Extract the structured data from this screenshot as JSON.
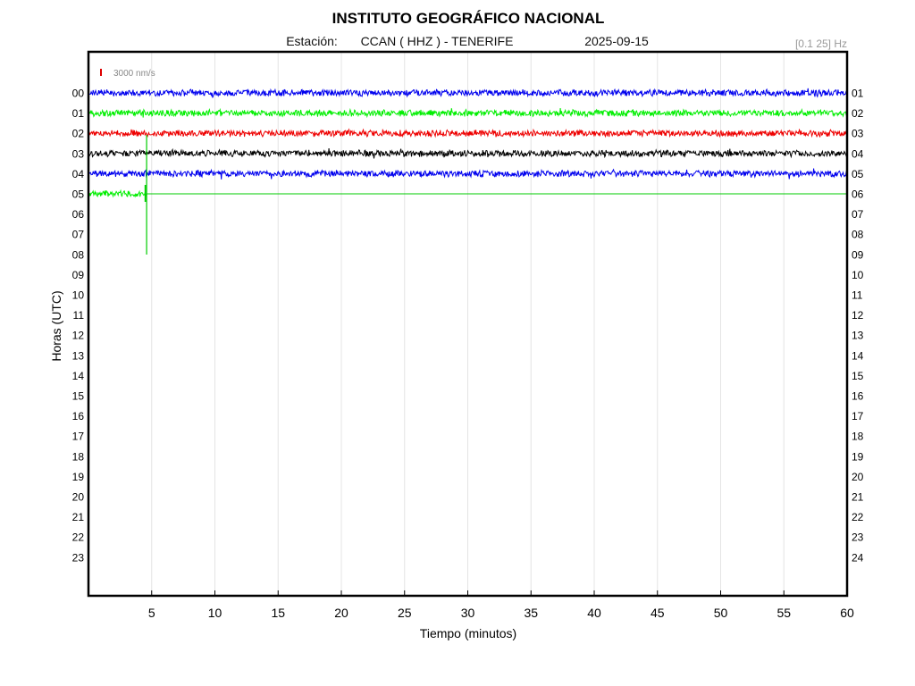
{
  "header": {
    "title": "INSTITUTO GEOGRÁFICO NACIONAL",
    "station_label": "Estación:",
    "station": "CCAN ( HHZ ) - TENERIFE",
    "date": "2025-09-15",
    "filter": "[0.1 25] Hz"
  },
  "scale": {
    "label": "3000 nm/s",
    "color": "#dd0000"
  },
  "chart_data": {
    "type": "line",
    "title": "INSTITUTO GEOGRÁFICO NACIONAL",
    "xlabel": "Tiempo (minutos)",
    "ylabel": "Horas (UTC)",
    "xlim": [
      0,
      60
    ],
    "x_ticks": [
      "5",
      "10",
      "15",
      "20",
      "25",
      "30",
      "35",
      "40",
      "45",
      "50",
      "55",
      "60"
    ],
    "x_tick_values": [
      5,
      10,
      15,
      20,
      25,
      30,
      35,
      40,
      45,
      50,
      55,
      60
    ],
    "left_labels": [
      "00",
      "01",
      "02",
      "03",
      "04",
      "05",
      "06",
      "07",
      "08",
      "09",
      "10",
      "11",
      "12",
      "13",
      "14",
      "15",
      "16",
      "17",
      "18",
      "19",
      "20",
      "21",
      "22",
      "23"
    ],
    "right_labels": [
      "01",
      "02",
      "03",
      "04",
      "05",
      "06",
      "07",
      "08",
      "09",
      "10",
      "11",
      "12",
      "13",
      "14",
      "15",
      "16",
      "17",
      "18",
      "19",
      "20",
      "21",
      "22",
      "23",
      "24"
    ],
    "grid": "vertical",
    "series": [
      {
        "hour": 0,
        "color": "#0000ee",
        "end_minute": 60
      },
      {
        "hour": 1,
        "color": "#00ee00",
        "end_minute": 60
      },
      {
        "hour": 2,
        "color": "#ee0000",
        "end_minute": 60
      },
      {
        "hour": 3,
        "color": "#000000",
        "end_minute": 60
      },
      {
        "hour": 4,
        "color": "#0000ee",
        "end_minute": 60
      },
      {
        "hour": 5,
        "color": "#00ee00",
        "end_minute": 4.6
      }
    ],
    "event": {
      "hour": 5,
      "minute": 4.6,
      "color": "#00cc00"
    }
  }
}
